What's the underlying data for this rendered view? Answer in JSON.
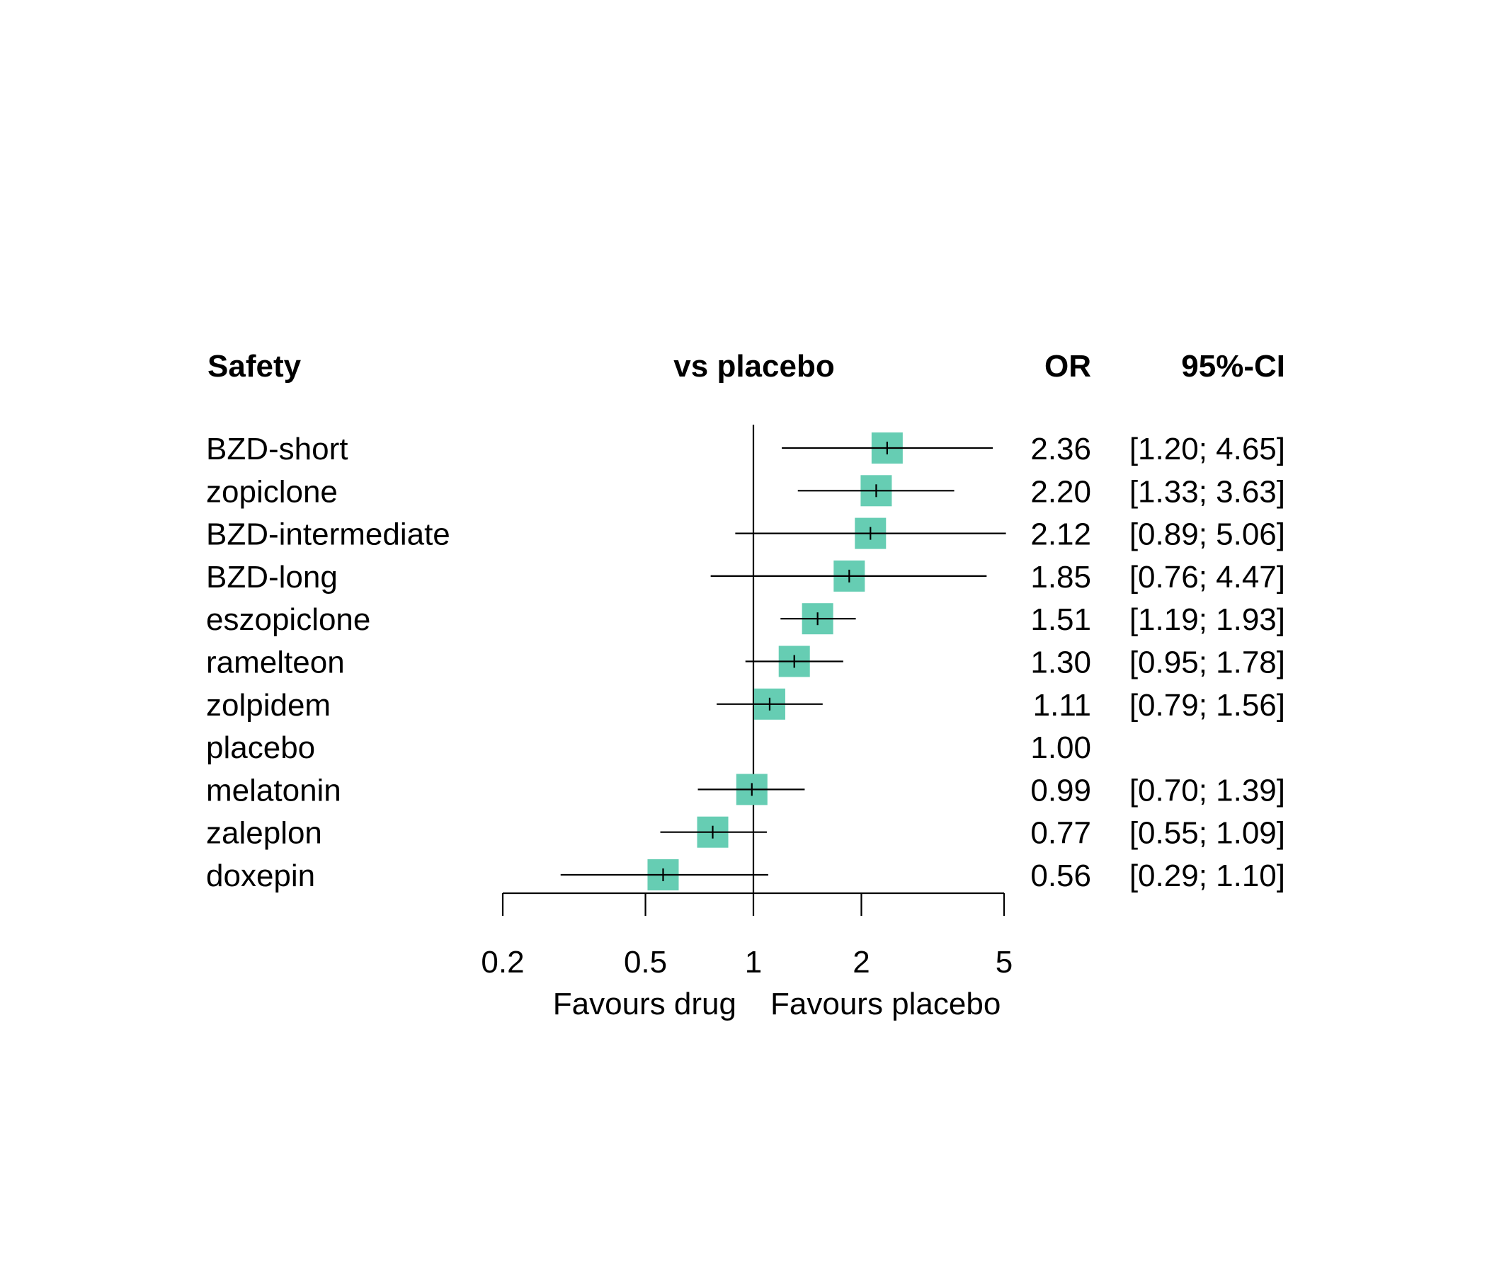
{
  "chart_data": {
    "type": "forest",
    "headers": {
      "studlab": "Safety",
      "plot": "vs placebo",
      "estimate": "OR",
      "ci": "95%-CI"
    },
    "scale": "log",
    "xlim": [
      0.2,
      5
    ],
    "xticks": [
      0.2,
      0.5,
      1,
      2,
      5
    ],
    "xtick_labels": [
      "0.2",
      "0.5",
      "1",
      "2",
      "5"
    ],
    "reference_value": 1,
    "label_left": "Favours drug",
    "label_right": "Favours placebo",
    "marker_color": "#66cdb3",
    "rows": [
      {
        "label": "BZD-short",
        "or": 2.36,
        "lower": 1.2,
        "upper": 4.65,
        "or_text": "2.36",
        "ci_text": "[1.20; 4.65]"
      },
      {
        "label": "zopiclone",
        "or": 2.2,
        "lower": 1.33,
        "upper": 3.63,
        "or_text": "2.20",
        "ci_text": "[1.33; 3.63]"
      },
      {
        "label": "BZD-intermediate",
        "or": 2.12,
        "lower": 0.89,
        "upper": 5.06,
        "or_text": "2.12",
        "ci_text": "[0.89; 5.06]"
      },
      {
        "label": "BZD-long",
        "or": 1.85,
        "lower": 0.76,
        "upper": 4.47,
        "or_text": "1.85",
        "ci_text": "[0.76; 4.47]"
      },
      {
        "label": "eszopiclone",
        "or": 1.51,
        "lower": 1.19,
        "upper": 1.93,
        "or_text": "1.51",
        "ci_text": "[1.19; 1.93]"
      },
      {
        "label": "ramelteon",
        "or": 1.3,
        "lower": 0.95,
        "upper": 1.78,
        "or_text": "1.30",
        "ci_text": "[0.95; 1.78]"
      },
      {
        "label": "zolpidem",
        "or": 1.11,
        "lower": 0.79,
        "upper": 1.56,
        "or_text": "1.11",
        "ci_text": "[0.79; 1.56]"
      },
      {
        "label": "placebo",
        "or": 1.0,
        "lower": null,
        "upper": null,
        "or_text": "1.00",
        "ci_text": ""
      },
      {
        "label": "melatonin",
        "or": 0.99,
        "lower": 0.7,
        "upper": 1.39,
        "or_text": "0.99",
        "ci_text": "[0.70; 1.39]"
      },
      {
        "label": "zaleplon",
        "or": 0.77,
        "lower": 0.55,
        "upper": 1.09,
        "or_text": "0.77",
        "ci_text": "[0.55; 1.09]"
      },
      {
        "label": "doxepin",
        "or": 0.56,
        "lower": 0.29,
        "upper": 1.1,
        "or_text": "0.56",
        "ci_text": "[0.29; 1.10]"
      }
    ]
  }
}
